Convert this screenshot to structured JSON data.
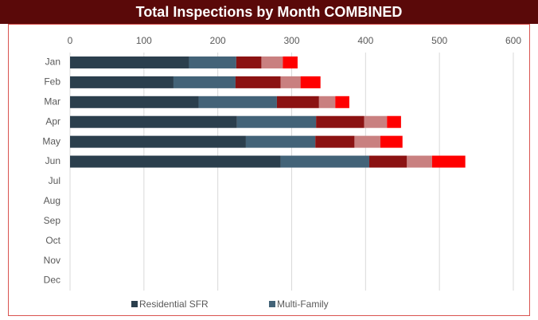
{
  "chart_data": {
    "type": "stacked-bar-horizontal",
    "title": "Total Inspections by Month COMBINED",
    "categories": [
      "Jan",
      "Feb",
      "Mar",
      "Apr",
      "May",
      "Jun",
      "Jul",
      "Aug",
      "Sep",
      "Oct",
      "Nov",
      "Dec"
    ],
    "series": [
      {
        "name": "Residential SFR",
        "color": "#2b3f4d",
        "values": [
          161,
          140,
          174,
          226,
          238,
          285,
          null,
          null,
          null,
          null,
          null,
          null
        ]
      },
      {
        "name": "Multi-Family",
        "color": "#436378",
        "values": [
          64,
          84,
          106,
          107,
          94,
          120,
          null,
          null,
          null,
          null,
          null,
          null
        ]
      },
      {
        "color": "#8b1212",
        "values": [
          34,
          61,
          57,
          65,
          53,
          51,
          null,
          null,
          null,
          null,
          null,
          null
        ]
      },
      {
        "color": "#c98080",
        "values": [
          29,
          27,
          22,
          31,
          35,
          34,
          null,
          null,
          null,
          null,
          null,
          null
        ]
      },
      {
        "color": "#ff0000",
        "values": [
          20,
          27,
          19,
          19,
          30,
          45,
          null,
          null,
          null,
          null,
          null,
          null
        ]
      }
    ],
    "xlim": [
      0,
      600
    ],
    "xticks": [
      0,
      100,
      200,
      300,
      400,
      500,
      600
    ],
    "grid": true,
    "legend": "bottom"
  }
}
